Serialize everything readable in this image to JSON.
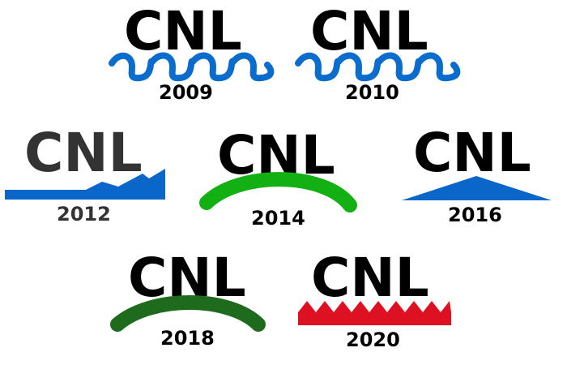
{
  "logos": [
    {
      "wordmark": "CNL",
      "year": "2009",
      "text_color": "#000000",
      "accent_color": "#0a6ccd",
      "shape": "wave"
    },
    {
      "wordmark": "CNL",
      "year": "2010",
      "text_color": "#000000",
      "accent_color": "#0a6ccd",
      "shape": "wave"
    },
    {
      "wordmark": "CNL",
      "year": "2012",
      "text_color": "#333333",
      "accent_color": "#0a66c8",
      "shape": "jagged-ribbon"
    },
    {
      "wordmark": "CNL",
      "year": "2014",
      "text_color": "#000000",
      "accent_color": "#12b012",
      "shape": "arc"
    },
    {
      "wordmark": "CNL",
      "year": "2016",
      "text_color": "#000000",
      "accent_color": "#0a66c8",
      "shape": "triangle"
    },
    {
      "wordmark": "CNL",
      "year": "2018",
      "text_color": "#000000",
      "accent_color": "#1e6b1e",
      "shape": "arc"
    },
    {
      "wordmark": "CNL",
      "year": "2020",
      "text_color": "#000000",
      "accent_color": "#dd1122",
      "shape": "sawtooth"
    }
  ]
}
